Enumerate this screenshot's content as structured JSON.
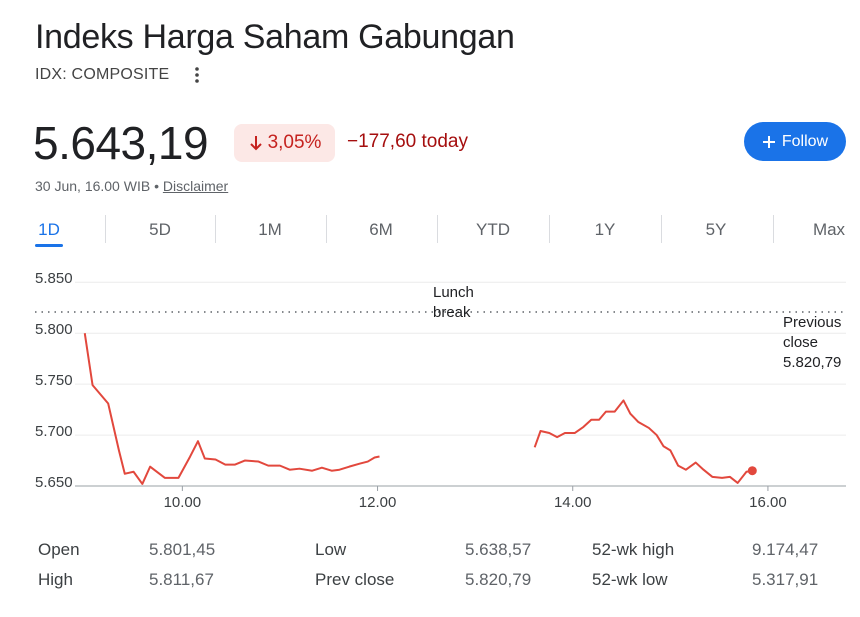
{
  "header": {
    "title": "Indeks Harga Saham Gabungan",
    "ticker": "IDX: COMPOSITE",
    "price": "5.643,19",
    "change_percent": "3,05%",
    "change": "−177,60 today",
    "timestamp": "30 Jun, 16.00 WIB",
    "separator": "•",
    "disclaimer": "Disclaimer",
    "follow": "Follow"
  },
  "tabs": [
    "1D",
    "5D",
    "1M",
    "6M",
    "YTD",
    "1Y",
    "5Y",
    "Max"
  ],
  "active_tab": 0,
  "chart_data": {
    "type": "line",
    "x": [
      9.0,
      9.08,
      9.24,
      9.35,
      9.41,
      9.5,
      9.59,
      9.67,
      9.82,
      9.96,
      10.08,
      10.16,
      10.23,
      10.34,
      10.44,
      10.54,
      10.64,
      10.78,
      10.88,
      11.0,
      11.1,
      11.2,
      11.33,
      11.43,
      11.53,
      11.61,
      11.71,
      11.82,
      11.9,
      11.97,
      12.02,
      13.0,
      13.61,
      13.67,
      13.76,
      13.84,
      13.92,
      14.02,
      14.11,
      14.19,
      14.27,
      14.34,
      14.43,
      14.52,
      14.59,
      14.67,
      14.78,
      14.86,
      14.93,
      15.0,
      15.08,
      15.16,
      15.26,
      15.34,
      15.43,
      15.53,
      15.61,
      15.69,
      15.78,
      15.84
    ],
    "series": [
      {
        "color": "#e2483d",
        "values": [
          5800,
          5749,
          5731,
          5685,
          5662,
          5664,
          5652,
          5669,
          5658,
          5658,
          5679,
          5694,
          5677,
          5676,
          5671,
          5671,
          5675,
          5674,
          5670,
          5670,
          5666,
          5667,
          5665,
          5668,
          5665,
          5666,
          5669,
          5672,
          5674,
          5678,
          5679,
          null,
          5688,
          5704,
          5702,
          5698,
          5702,
          5702,
          5708,
          5715,
          5715,
          5723,
          5723,
          5734,
          5721,
          5713,
          5707,
          5700,
          5689,
          5685,
          5670,
          5666,
          5673,
          5666,
          5659,
          5658,
          5659,
          5653,
          5664,
          5665
        ]
      }
    ],
    "xlim": [
      8.9,
      16.8
    ],
    "ylim": [
      5650,
      5865
    ],
    "xticks": [
      {
        "value": 10,
        "label": "10.00"
      },
      {
        "value": 12,
        "label": "12.00"
      },
      {
        "value": 14,
        "label": "14.00"
      },
      {
        "value": 16,
        "label": "16.00"
      }
    ],
    "yticks": [
      {
        "value": 5650,
        "label": "5.650"
      },
      {
        "value": 5700,
        "label": "5.700"
      },
      {
        "value": 5750,
        "label": "5.750"
      },
      {
        "value": 5800,
        "label": "5.800"
      },
      {
        "value": 5850,
        "label": "5.850"
      }
    ],
    "grid": true,
    "annotations": [
      "Lunch break",
      "Previous close"
    ],
    "prev_close": {
      "value": 5820.79,
      "label": "5.820,79"
    }
  },
  "stats": [
    [
      "Open",
      "5.801,45",
      "Low",
      "5.638,57",
      "52-wk high",
      "9.174,47"
    ],
    [
      "High",
      "5.811,67",
      "Prev close",
      "5.820,79",
      "52-wk low",
      "5.317,91"
    ]
  ]
}
